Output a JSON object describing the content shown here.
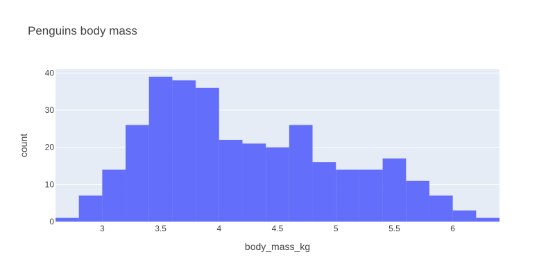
{
  "chart_data": {
    "type": "bar",
    "title": "Penguins body mass",
    "xlabel": "body_mass_kg",
    "ylabel": "count",
    "bin_size": 0.2,
    "bins": [
      {
        "start": 2.6,
        "end": 2.8,
        "count": 1
      },
      {
        "start": 2.8,
        "end": 3.0,
        "count": 7
      },
      {
        "start": 3.0,
        "end": 3.2,
        "count": 14
      },
      {
        "start": 3.2,
        "end": 3.4,
        "count": 26
      },
      {
        "start": 3.4,
        "end": 3.6,
        "count": 39
      },
      {
        "start": 3.6,
        "end": 3.8,
        "count": 38
      },
      {
        "start": 3.8,
        "end": 4.0,
        "count": 36
      },
      {
        "start": 4.0,
        "end": 4.2,
        "count": 22
      },
      {
        "start": 4.2,
        "end": 4.4,
        "count": 21
      },
      {
        "start": 4.4,
        "end": 4.6,
        "count": 20
      },
      {
        "start": 4.6,
        "end": 4.8,
        "count": 26
      },
      {
        "start": 4.8,
        "end": 5.0,
        "count": 16
      },
      {
        "start": 5.0,
        "end": 5.2,
        "count": 14
      },
      {
        "start": 5.2,
        "end": 5.4,
        "count": 14
      },
      {
        "start": 5.4,
        "end": 5.6,
        "count": 17
      },
      {
        "start": 5.6,
        "end": 5.8,
        "count": 11
      },
      {
        "start": 5.8,
        "end": 6.0,
        "count": 7
      },
      {
        "start": 6.0,
        "end": 6.2,
        "count": 3
      },
      {
        "start": 6.2,
        "end": 6.4,
        "count": 1
      }
    ],
    "xlim": [
      2.6,
      6.4
    ],
    "ylim": [
      0,
      41
    ],
    "x_ticks": [
      3,
      3.5,
      4,
      4.5,
      5,
      5.5,
      6
    ],
    "x_tick_labels": [
      "3",
      "3.5",
      "4",
      "4.5",
      "5",
      "5.5",
      "6"
    ],
    "y_ticks": [
      0,
      10,
      20,
      30,
      40
    ],
    "y_tick_labels": [
      "0",
      "10",
      "20",
      "30",
      "40"
    ],
    "grid": true,
    "colors": {
      "bar": "#636efa",
      "plot_background": "#e5ecf6",
      "grid": "#ffffff",
      "text": "#444444"
    }
  }
}
